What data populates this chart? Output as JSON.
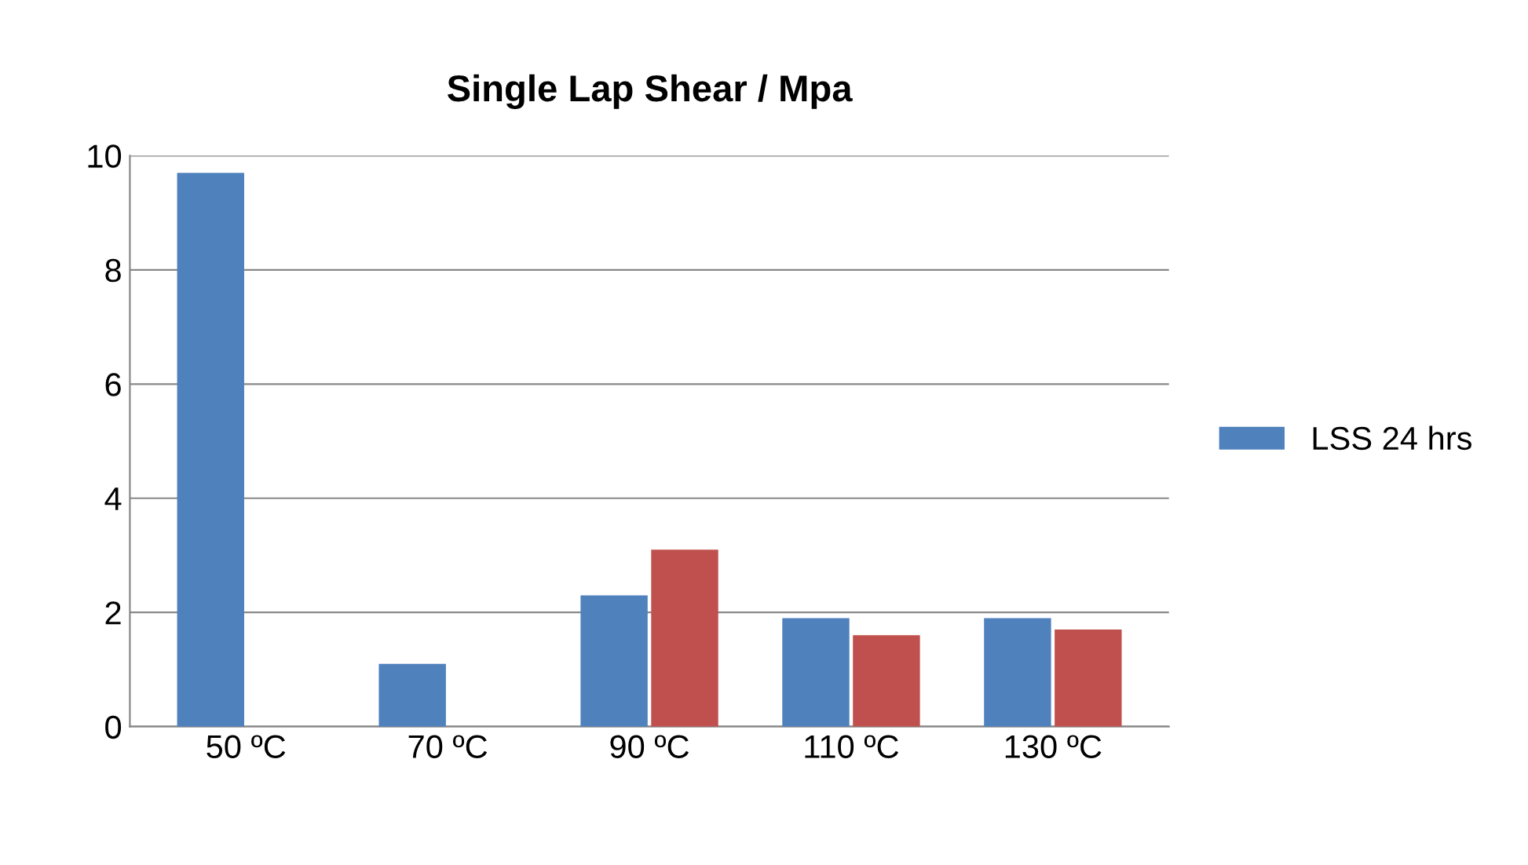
{
  "chart_data": {
    "type": "bar",
    "title": "Single Lap Shear / Mpa",
    "categories": [
      "50 ºC",
      "70 ºC",
      "90 ºC",
      "110 ºC",
      "130 ºC"
    ],
    "series": [
      {
        "name": "LSS 24 hrs",
        "color": "#4f81bd",
        "values": [
          9.7,
          1.1,
          2.3,
          1.9,
          1.9
        ]
      },
      {
        "color": "#c0504d",
        "values": [
          null,
          null,
          3.1,
          1.6,
          1.7
        ]
      }
    ],
    "ylim": [
      0,
      10
    ],
    "yticks": [
      0,
      2,
      4,
      6,
      8,
      10
    ],
    "grid": "y",
    "legend": "right"
  }
}
